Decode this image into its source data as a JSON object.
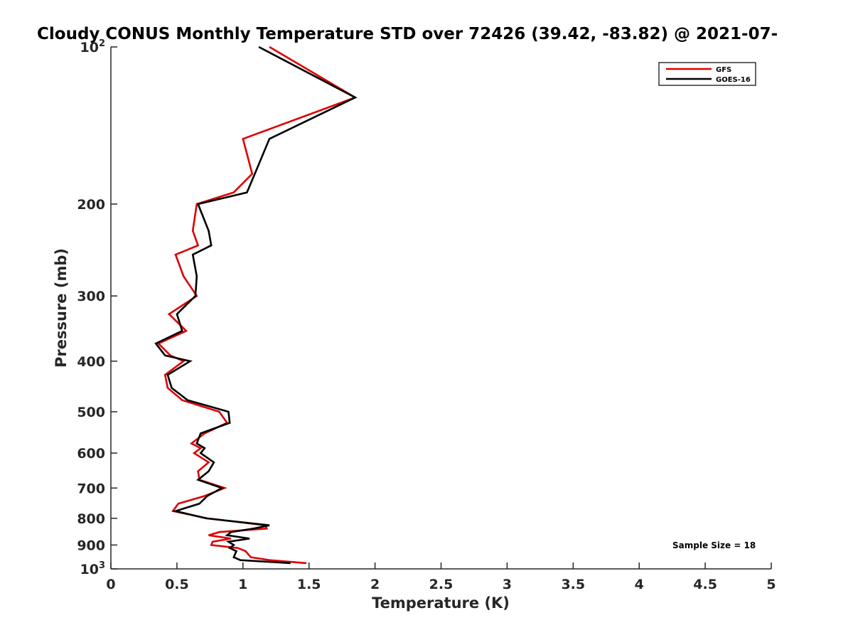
{
  "chart_data": {
    "type": "line",
    "title": "Cloudy CONUS Monthly Temperature STD over 72426 (39.42, -83.82) @ 2021-07-",
    "xlabel": "Temperature (K)",
    "ylabel": "Pressure (mb)",
    "xlim": [
      0,
      5
    ],
    "ylim": [
      1000,
      100
    ],
    "yscale": "log",
    "x_ticks": [
      "0",
      "0.5",
      "1",
      "1.5",
      "2",
      "2.5",
      "3",
      "3.5",
      "4",
      "4.5",
      "5"
    ],
    "y_ticks": [
      {
        "value": 100,
        "label": "10",
        "sup": "2"
      },
      {
        "value": 200,
        "label": "200",
        "sup": ""
      },
      {
        "value": 300,
        "label": "300",
        "sup": ""
      },
      {
        "value": 400,
        "label": "400",
        "sup": ""
      },
      {
        "value": 500,
        "label": "500",
        "sup": ""
      },
      {
        "value": 600,
        "label": "600",
        "sup": ""
      },
      {
        "value": 700,
        "label": "700",
        "sup": ""
      },
      {
        "value": 800,
        "label": "800",
        "sup": ""
      },
      {
        "value": 900,
        "label": "900",
        "sup": ""
      },
      {
        "value": 1000,
        "label": "10",
        "sup": "3"
      }
    ],
    "legend_position": "top-right",
    "annotation": "Sample Size = 18",
    "series": [
      {
        "name": "GFS",
        "color": "#dd0000",
        "points": [
          [
            1.2,
            100
          ],
          [
            1.85,
            125
          ],
          [
            1.0,
            150
          ],
          [
            1.07,
            175
          ],
          [
            0.93,
            190
          ],
          [
            0.65,
            200
          ],
          [
            0.62,
            225
          ],
          [
            0.66,
            240
          ],
          [
            0.49,
            250
          ],
          [
            0.55,
            275
          ],
          [
            0.65,
            300
          ],
          [
            0.44,
            325
          ],
          [
            0.57,
            350
          ],
          [
            0.36,
            370
          ],
          [
            0.45,
            390
          ],
          [
            0.55,
            400
          ],
          [
            0.41,
            425
          ],
          [
            0.43,
            450
          ],
          [
            0.54,
            475
          ],
          [
            0.82,
            500
          ],
          [
            0.88,
            525
          ],
          [
            0.71,
            550
          ],
          [
            0.61,
            575
          ],
          [
            0.68,
            587
          ],
          [
            0.63,
            600
          ],
          [
            0.74,
            625
          ],
          [
            0.66,
            650
          ],
          [
            0.67,
            675
          ],
          [
            0.86,
            700
          ],
          [
            0.71,
            725
          ],
          [
            0.51,
            750
          ],
          [
            0.47,
            775
          ],
          [
            0.73,
            800
          ],
          [
            1.17,
            825
          ],
          [
            1.18,
            837
          ],
          [
            0.82,
            850
          ],
          [
            0.74,
            862
          ],
          [
            0.91,
            875
          ],
          [
            0.77,
            887
          ],
          [
            0.76,
            900
          ],
          [
            0.96,
            912
          ],
          [
            1.02,
            925
          ],
          [
            1.06,
            950
          ],
          [
            1.2,
            962
          ],
          [
            1.48,
            975
          ]
        ]
      },
      {
        "name": "GOES-16",
        "color": "#000000",
        "points": [
          [
            1.12,
            100
          ],
          [
            1.85,
            125
          ],
          [
            1.2,
            150
          ],
          [
            1.09,
            175
          ],
          [
            1.03,
            190
          ],
          [
            0.66,
            200
          ],
          [
            0.74,
            225
          ],
          [
            0.76,
            240
          ],
          [
            0.62,
            250
          ],
          [
            0.65,
            275
          ],
          [
            0.64,
            300
          ],
          [
            0.5,
            325
          ],
          [
            0.54,
            350
          ],
          [
            0.34,
            370
          ],
          [
            0.41,
            390
          ],
          [
            0.6,
            400
          ],
          [
            0.43,
            425
          ],
          [
            0.46,
            450
          ],
          [
            0.58,
            475
          ],
          [
            0.89,
            500
          ],
          [
            0.9,
            525
          ],
          [
            0.68,
            550
          ],
          [
            0.65,
            575
          ],
          [
            0.71,
            587
          ],
          [
            0.68,
            600
          ],
          [
            0.78,
            625
          ],
          [
            0.74,
            650
          ],
          [
            0.66,
            675
          ],
          [
            0.84,
            700
          ],
          [
            0.73,
            725
          ],
          [
            0.67,
            750
          ],
          [
            0.49,
            775
          ],
          [
            0.72,
            800
          ],
          [
            1.2,
            825
          ],
          [
            1.08,
            837
          ],
          [
            0.91,
            850
          ],
          [
            0.88,
            862
          ],
          [
            1.05,
            875
          ],
          [
            0.89,
            887
          ],
          [
            0.93,
            900
          ],
          [
            0.9,
            912
          ],
          [
            0.95,
            925
          ],
          [
            0.93,
            950
          ],
          [
            0.98,
            962
          ],
          [
            1.36,
            975
          ]
        ]
      }
    ]
  }
}
